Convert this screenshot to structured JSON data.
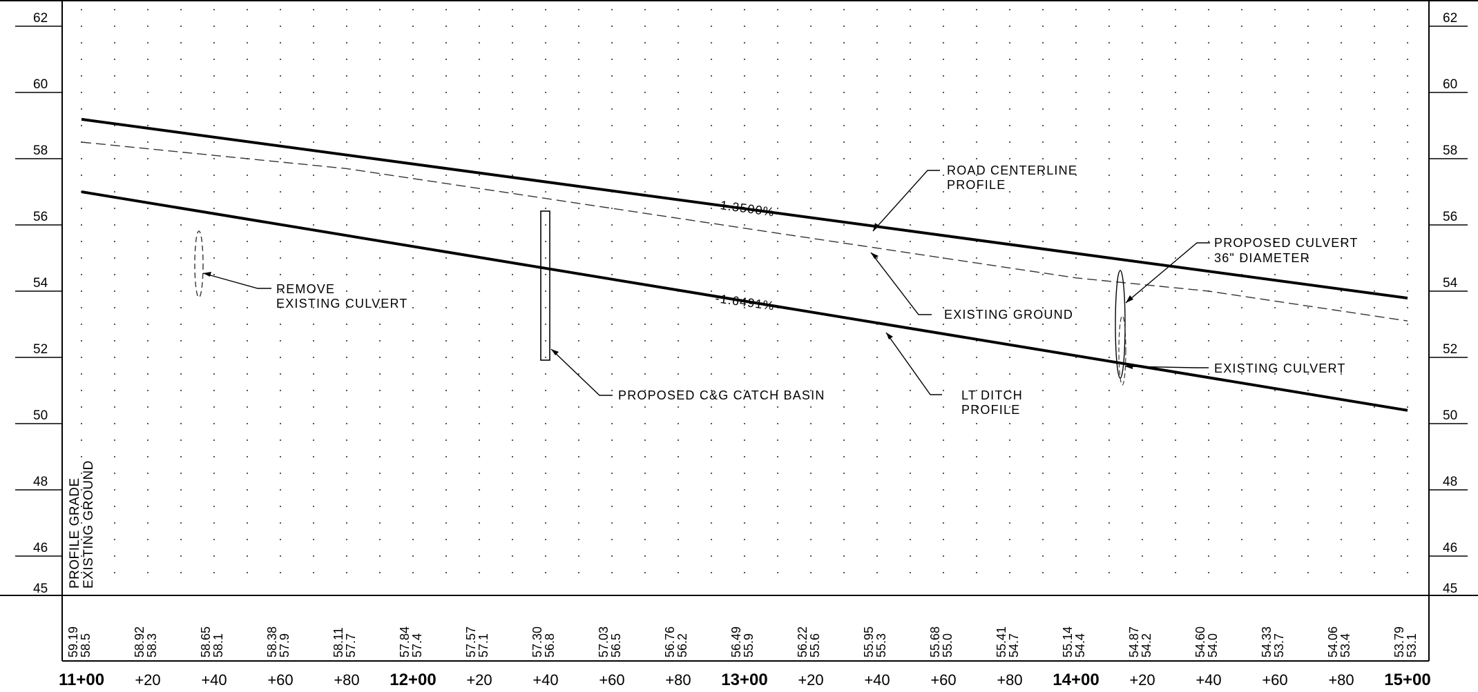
{
  "profile": {
    "station_start": 1100,
    "station_end": 1500,
    "elev_min": 45,
    "elev_max": 63,
    "elevation_labels": [
      46,
      48,
      50,
      52,
      54,
      56,
      58,
      60,
      62
    ],
    "bottom_label": "45",
    "station_labels": [
      {
        "sta": 1100,
        "label": "11+00",
        "major": true
      },
      {
        "sta": 1120,
        "label": "+20",
        "major": false
      },
      {
        "sta": 1140,
        "label": "+40",
        "major": false
      },
      {
        "sta": 1160,
        "label": "+60",
        "major": false
      },
      {
        "sta": 1180,
        "label": "+80",
        "major": false
      },
      {
        "sta": 1200,
        "label": "12+00",
        "major": true
      },
      {
        "sta": 1220,
        "label": "+20",
        "major": false
      },
      {
        "sta": 1240,
        "label": "+40",
        "major": false
      },
      {
        "sta": 1260,
        "label": "+60",
        "major": false
      },
      {
        "sta": 1280,
        "label": "+80",
        "major": false
      },
      {
        "sta": 1300,
        "label": "13+00",
        "major": true
      },
      {
        "sta": 1320,
        "label": "+20",
        "major": false
      },
      {
        "sta": 1340,
        "label": "+40",
        "major": false
      },
      {
        "sta": 1360,
        "label": "+60",
        "major": false
      },
      {
        "sta": 1380,
        "label": "+80",
        "major": false
      },
      {
        "sta": 1400,
        "label": "14+00",
        "major": true
      },
      {
        "sta": 1420,
        "label": "+20",
        "major": false
      },
      {
        "sta": 1440,
        "label": "+40",
        "major": false
      },
      {
        "sta": 1460,
        "label": "+60",
        "major": false
      },
      {
        "sta": 1480,
        "label": "+80",
        "major": false
      },
      {
        "sta": 1500,
        "label": "15+00",
        "major": true
      }
    ],
    "elevation_values": [
      {
        "sta": 1100,
        "grade": "59.19",
        "ground": "58.5"
      },
      {
        "sta": 1120,
        "grade": "58.92",
        "ground": "58.3"
      },
      {
        "sta": 1140,
        "grade": "58.65",
        "ground": "58.1"
      },
      {
        "sta": 1160,
        "grade": "58.38",
        "ground": "57.9"
      },
      {
        "sta": 1180,
        "grade": "58.11",
        "ground": "57.7"
      },
      {
        "sta": 1200,
        "grade": "57.84",
        "ground": "57.4"
      },
      {
        "sta": 1220,
        "grade": "57.57",
        "ground": "57.1"
      },
      {
        "sta": 1240,
        "grade": "57.30",
        "ground": "56.8"
      },
      {
        "sta": 1260,
        "grade": "57.03",
        "ground": "56.5"
      },
      {
        "sta": 1280,
        "grade": "56.76",
        "ground": "56.2"
      },
      {
        "sta": 1300,
        "grade": "56.49",
        "ground": "55.9"
      },
      {
        "sta": 1320,
        "grade": "56.22",
        "ground": "55.6"
      },
      {
        "sta": 1340,
        "grade": "55.95",
        "ground": "55.3"
      },
      {
        "sta": 1360,
        "grade": "55.68",
        "ground": "55.0"
      },
      {
        "sta": 1380,
        "grade": "55.41",
        "ground": "54.7"
      },
      {
        "sta": 1400,
        "grade": "55.14",
        "ground": "54.4"
      },
      {
        "sta": 1420,
        "grade": "54.87",
        "ground": "54.2"
      },
      {
        "sta": 1440,
        "grade": "54.60",
        "ground": "54.0"
      },
      {
        "sta": 1460,
        "grade": "54.33",
        "ground": "53.7"
      },
      {
        "sta": 1480,
        "grade": "54.06",
        "ground": "53.4"
      },
      {
        "sta": 1500,
        "grade": "53.79",
        "ground": "53.1"
      }
    ],
    "road_centerline": {
      "sta_start": 1100,
      "elev_start": 59.19,
      "sta_end": 1500,
      "elev_end": 53.79
    },
    "lt_ditch": {
      "sta_start": 1100,
      "elev_start": 57.0,
      "sta_end": 1500,
      "elev_end": 50.4
    },
    "existing_ground_points": [
      [
        1100,
        58.5
      ],
      [
        1120,
        58.3
      ],
      [
        1140,
        58.1
      ],
      [
        1160,
        57.9
      ],
      [
        1180,
        57.7
      ],
      [
        1200,
        57.4
      ],
      [
        1220,
        57.1
      ],
      [
        1240,
        56.8
      ],
      [
        1260,
        56.5
      ],
      [
        1280,
        56.2
      ],
      [
        1300,
        55.9
      ],
      [
        1320,
        55.6
      ],
      [
        1340,
        55.3
      ],
      [
        1360,
        55.0
      ],
      [
        1380,
        54.7
      ],
      [
        1400,
        54.4
      ],
      [
        1420,
        54.2
      ],
      [
        1440,
        54.0
      ],
      [
        1460,
        53.7
      ],
      [
        1480,
        53.4
      ],
      [
        1500,
        53.1
      ]
    ],
    "slope_labels": {
      "road": "-1.3500%",
      "ditch": "-1.6491%"
    },
    "row_labels": {
      "grade": "PROFILE GRADE",
      "ground": "EXISTING GROUND"
    },
    "annotations": {
      "road_centerline": [
        "ROAD CENTERLINE",
        "PROFILE"
      ],
      "existing_ground": [
        "EXISTING GROUND"
      ],
      "lt_ditch": [
        "LT DITCH",
        "PROFILE"
      ],
      "remove_culvert": [
        "REMOVE",
        "EXISTING CULVERT"
      ],
      "catch_basin": [
        "PROPOSED C&G CATCH BASIN"
      ],
      "proposed_culvert": [
        "PROPOSED CULVERT",
        "36\" DIAMETER"
      ],
      "existing_culvert": [
        "EXISTING CULVERT"
      ]
    }
  }
}
